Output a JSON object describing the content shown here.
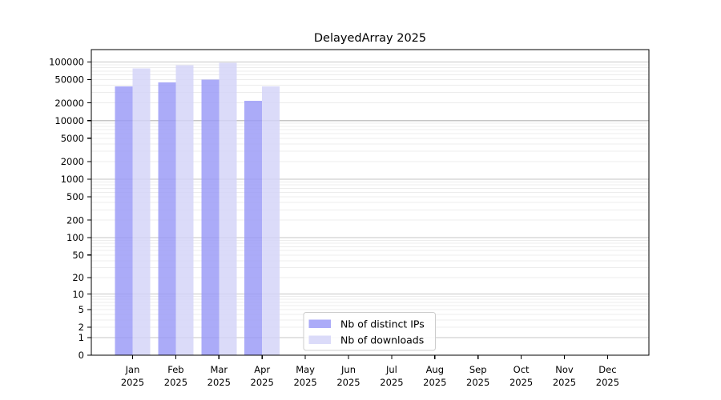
{
  "figure": {
    "title": "DelayedArray 2025"
  },
  "chart_data": {
    "type": "bar",
    "title": "DelayedArray 2025",
    "xlabel": "",
    "ylabel": "",
    "year": "2025",
    "categories": [
      "Jan",
      "Feb",
      "Mar",
      "Apr",
      "May",
      "Jun",
      "Jul",
      "Aug",
      "Sep",
      "Oct",
      "Nov",
      "Dec"
    ],
    "series": [
      {
        "name": "Nb of distinct IPs",
        "color": "#9898f6",
        "values": [
          38000,
          45000,
          49700,
          21600,
          null,
          null,
          null,
          null,
          null,
          null,
          null,
          null
        ]
      },
      {
        "name": "Nb of downloads",
        "color": "#d3d3f8",
        "values": [
          78000,
          88500,
          96500,
          38500,
          null,
          null,
          null,
          null,
          null,
          null,
          null,
          null
        ]
      }
    ],
    "bar_opacity": 0.82,
    "y_scale": "log1p",
    "ylim": [
      0,
      163000
    ],
    "y_ticks": [
      100000,
      50000,
      20000,
      10000,
      5000,
      2000,
      1000,
      500,
      200,
      100,
      50,
      20,
      10,
      5,
      2,
      1,
      0
    ],
    "grid": {
      "major_color": "#c6c6c6",
      "minor_color": "#ececec",
      "major_values": [
        1,
        10,
        100,
        1000,
        10000,
        100000
      ]
    },
    "legend": {
      "position": "inside-bottom-center",
      "entries": [
        "Nb of distinct IPs",
        "Nb of downloads"
      ],
      "border_color": "#cccccc",
      "background": "#ffffff"
    },
    "axis_color": "#000000"
  }
}
